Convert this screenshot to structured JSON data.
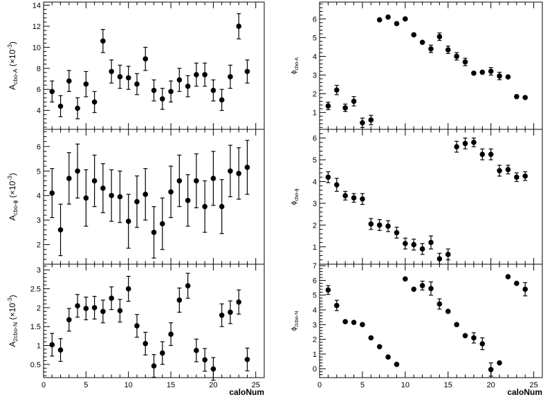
{
  "chart_data": [
    {
      "type": "scatter",
      "column": "left",
      "row": 0,
      "ylabel_main": "A",
      "ylabel_sub": "cbo-A",
      "ylabel_scale": "(×10",
      "ylabel_exp": "-3",
      "ylabel_close": ")",
      "xlim": [
        0,
        26
      ],
      "ylim": [
        2.2,
        14.3
      ],
      "yticks": [
        4,
        6,
        8,
        10,
        12,
        14
      ],
      "ytick_labels": [
        "4",
        "6",
        "8",
        "10",
        "12",
        "14"
      ],
      "x": [
        1,
        2,
        3,
        4,
        5,
        6,
        7,
        8,
        9,
        10,
        11,
        12,
        13,
        14,
        15,
        16,
        17,
        18,
        19,
        20,
        21,
        22,
        23,
        24
      ],
      "y": [
        5.8,
        4.4,
        6.8,
        4.2,
        6.5,
        4.8,
        10.6,
        7.7,
        7.2,
        7.1,
        6.5,
        8.9,
        5.9,
        5.1,
        5.8,
        6.9,
        6.3,
        7.4,
        7.4,
        5.9,
        5.0,
        7.2,
        12.0,
        7.7
      ],
      "yerr": [
        1.0,
        1.0,
        1.0,
        1.0,
        1.2,
        1.0,
        1.1,
        1.1,
        1.1,
        1.1,
        1.0,
        1.1,
        1.0,
        1.0,
        1.0,
        1.1,
        1.0,
        1.1,
        1.1,
        1.0,
        1.0,
        1.1,
        1.2,
        1.1
      ]
    },
    {
      "type": "scatter",
      "column": "left",
      "row": 1,
      "ylabel_main": "A",
      "ylabel_sub": "cbo-ϕ",
      "ylabel_scale": "(×10",
      "ylabel_exp": "-3",
      "ylabel_close": ")",
      "xlim": [
        0,
        26
      ],
      "ylim": [
        1.2,
        6.7
      ],
      "yticks": [
        2,
        3,
        4,
        5,
        6
      ],
      "ytick_labels": [
        "2",
        "3",
        "4",
        "5",
        "6"
      ],
      "x": [
        1,
        2,
        3,
        4,
        5,
        6,
        7,
        8,
        9,
        10,
        11,
        12,
        13,
        14,
        15,
        16,
        17,
        18,
        19,
        20,
        21,
        22,
        23,
        24
      ],
      "y": [
        4.1,
        2.6,
        4.7,
        5.0,
        3.9,
        4.6,
        4.3,
        4.0,
        3.95,
        2.95,
        3.75,
        4.05,
        2.5,
        2.85,
        4.15,
        4.6,
        3.8,
        4.6,
        3.55,
        4.7,
        3.55,
        5.0,
        4.9,
        5.15
      ],
      "yerr": [
        1.0,
        1.05,
        1.05,
        1.1,
        1.15,
        1.05,
        1.0,
        1.05,
        1.05,
        1.1,
        1.05,
        1.05,
        1.05,
        1.05,
        1.05,
        1.05,
        1.05,
        1.1,
        1.05,
        1.1,
        1.1,
        1.05,
        1.05,
        1.1
      ]
    },
    {
      "type": "scatter",
      "column": "left",
      "row": 2,
      "ylabel_main": "A",
      "ylabel_sub": "2cbo-N",
      "ylabel_scale": "(×10",
      "ylabel_exp": "-3",
      "ylabel_close": ")",
      "xlim": [
        0,
        26
      ],
      "ylim": [
        0.15,
        3.15
      ],
      "yticks": [
        0.5,
        1,
        1.5,
        2,
        2.5,
        3
      ],
      "ytick_labels": [
        "0.5",
        "1",
        "1.5",
        "2",
        "2.5",
        "3"
      ],
      "x": [
        1,
        2,
        3,
        4,
        5,
        6,
        7,
        8,
        9,
        10,
        11,
        12,
        13,
        14,
        15,
        16,
        17,
        18,
        19,
        20,
        21,
        22,
        23,
        24
      ],
      "y": [
        1.02,
        0.88,
        1.68,
        2.05,
        1.98,
        2.0,
        1.9,
        2.25,
        1.92,
        2.5,
        1.52,
        1.05,
        0.46,
        0.8,
        1.3,
        2.2,
        2.58,
        0.87,
        0.62,
        0.38,
        1.8,
        1.88,
        2.15,
        0.63
      ],
      "yerr": [
        0.3,
        0.3,
        0.3,
        0.3,
        0.3,
        0.3,
        0.3,
        0.3,
        0.3,
        0.33,
        0.3,
        0.3,
        0.3,
        0.3,
        0.3,
        0.32,
        0.33,
        0.3,
        0.3,
        0.3,
        0.3,
        0.3,
        0.32,
        0.3
      ]
    },
    {
      "type": "scatter",
      "column": "right",
      "row": 0,
      "ylabel_main": "ϕ",
      "ylabel_sub": "cbo-A",
      "xlim": [
        0,
        26
      ],
      "ylim": [
        0.1,
        6.9
      ],
      "yticks": [
        1,
        2,
        3,
        4,
        5,
        6
      ],
      "ytick_labels": [
        "1",
        "2",
        "3",
        "4",
        "5",
        "6"
      ],
      "x": [
        1,
        2,
        3,
        4,
        5,
        6,
        7,
        8,
        9,
        10,
        11,
        12,
        13,
        14,
        15,
        16,
        17,
        18,
        19,
        20,
        21,
        22,
        23,
        24
      ],
      "y": [
        1.35,
        2.2,
        1.25,
        1.6,
        0.45,
        0.6,
        5.95,
        6.1,
        5.75,
        6.0,
        5.15,
        4.75,
        4.4,
        5.05,
        4.35,
        4.0,
        3.7,
        3.1,
        3.15,
        3.2,
        2.95,
        2.9,
        1.85,
        1.8
      ],
      "yerr": [
        0.2,
        0.25,
        0.2,
        0.25,
        0.25,
        0.25,
        0.05,
        0.05,
        0.05,
        0.05,
        0.05,
        0.05,
        0.2,
        0.2,
        0.2,
        0.2,
        0.2,
        0.05,
        0.05,
        0.2,
        0.2,
        0.05,
        0.05,
        0.05
      ]
    },
    {
      "type": "scatter",
      "column": "right",
      "row": 1,
      "ylabel_main": "ϕ",
      "ylabel_sub": "cbo-ϕ",
      "xlim": [
        0,
        26
      ],
      "ylim": [
        0.2,
        6.4
      ],
      "yticks": [
        1,
        2,
        3,
        4,
        5,
        6
      ],
      "ytick_labels": [
        "1",
        "2",
        "3",
        "4",
        "5",
        "6"
      ],
      "x": [
        1,
        2,
        3,
        4,
        5,
        6,
        7,
        8,
        9,
        10,
        11,
        12,
        13,
        14,
        15,
        16,
        17,
        18,
        19,
        20,
        21,
        22,
        23,
        24
      ],
      "y": [
        4.2,
        3.85,
        3.35,
        3.25,
        3.2,
        2.05,
        2.0,
        1.95,
        1.65,
        1.15,
        1.1,
        0.9,
        1.2,
        0.45,
        0.65,
        5.6,
        5.75,
        5.8,
        5.25,
        5.25,
        4.5,
        4.55,
        4.2,
        4.25
      ],
      "yerr": [
        0.25,
        0.3,
        0.2,
        0.2,
        0.25,
        0.25,
        0.25,
        0.25,
        0.25,
        0.25,
        0.25,
        0.25,
        0.3,
        0.25,
        0.25,
        0.25,
        0.25,
        0.2,
        0.25,
        0.25,
        0.25,
        0.2,
        0.2,
        0.2
      ]
    },
    {
      "type": "scatter",
      "column": "right",
      "row": 2,
      "ylabel_main": "ϕ",
      "ylabel_sub": "2cbo-N",
      "xlim": [
        0,
        26
      ],
      "ylim": [
        -0.6,
        7.1
      ],
      "yticks": [
        0,
        1,
        2,
        3,
        4,
        5,
        6,
        7
      ],
      "ytick_labels": [
        "0",
        "1",
        "2",
        "3",
        "4",
        "5",
        "6",
        "7"
      ],
      "x": [
        1,
        2,
        3,
        4,
        5,
        6,
        7,
        8,
        9,
        10,
        11,
        12,
        13,
        14,
        15,
        16,
        17,
        18,
        19,
        20,
        21,
        22,
        23,
        24
      ],
      "y": [
        5.35,
        4.3,
        3.2,
        3.15,
        3.0,
        2.1,
        1.5,
        0.8,
        0.3,
        6.1,
        5.4,
        5.65,
        5.45,
        4.4,
        3.9,
        3.0,
        2.25,
        2.1,
        1.7,
        -0.05,
        0.4,
        6.25,
        5.8,
        5.4
      ],
      "yerr": [
        0.3,
        0.35,
        0.05,
        0.05,
        0.05,
        0.05,
        0.05,
        0.05,
        0.05,
        0.05,
        0.05,
        0.3,
        0.45,
        0.35,
        0.05,
        0.05,
        0.05,
        0.35,
        0.4,
        0.45,
        0.05,
        0.05,
        0.05,
        0.45
      ]
    }
  ],
  "xaxis": {
    "label": "caloNum",
    "ticks": [
      0,
      5,
      10,
      15,
      20,
      25
    ],
    "tick_labels": [
      "0",
      "5",
      "10",
      "15",
      "20",
      "25"
    ]
  }
}
